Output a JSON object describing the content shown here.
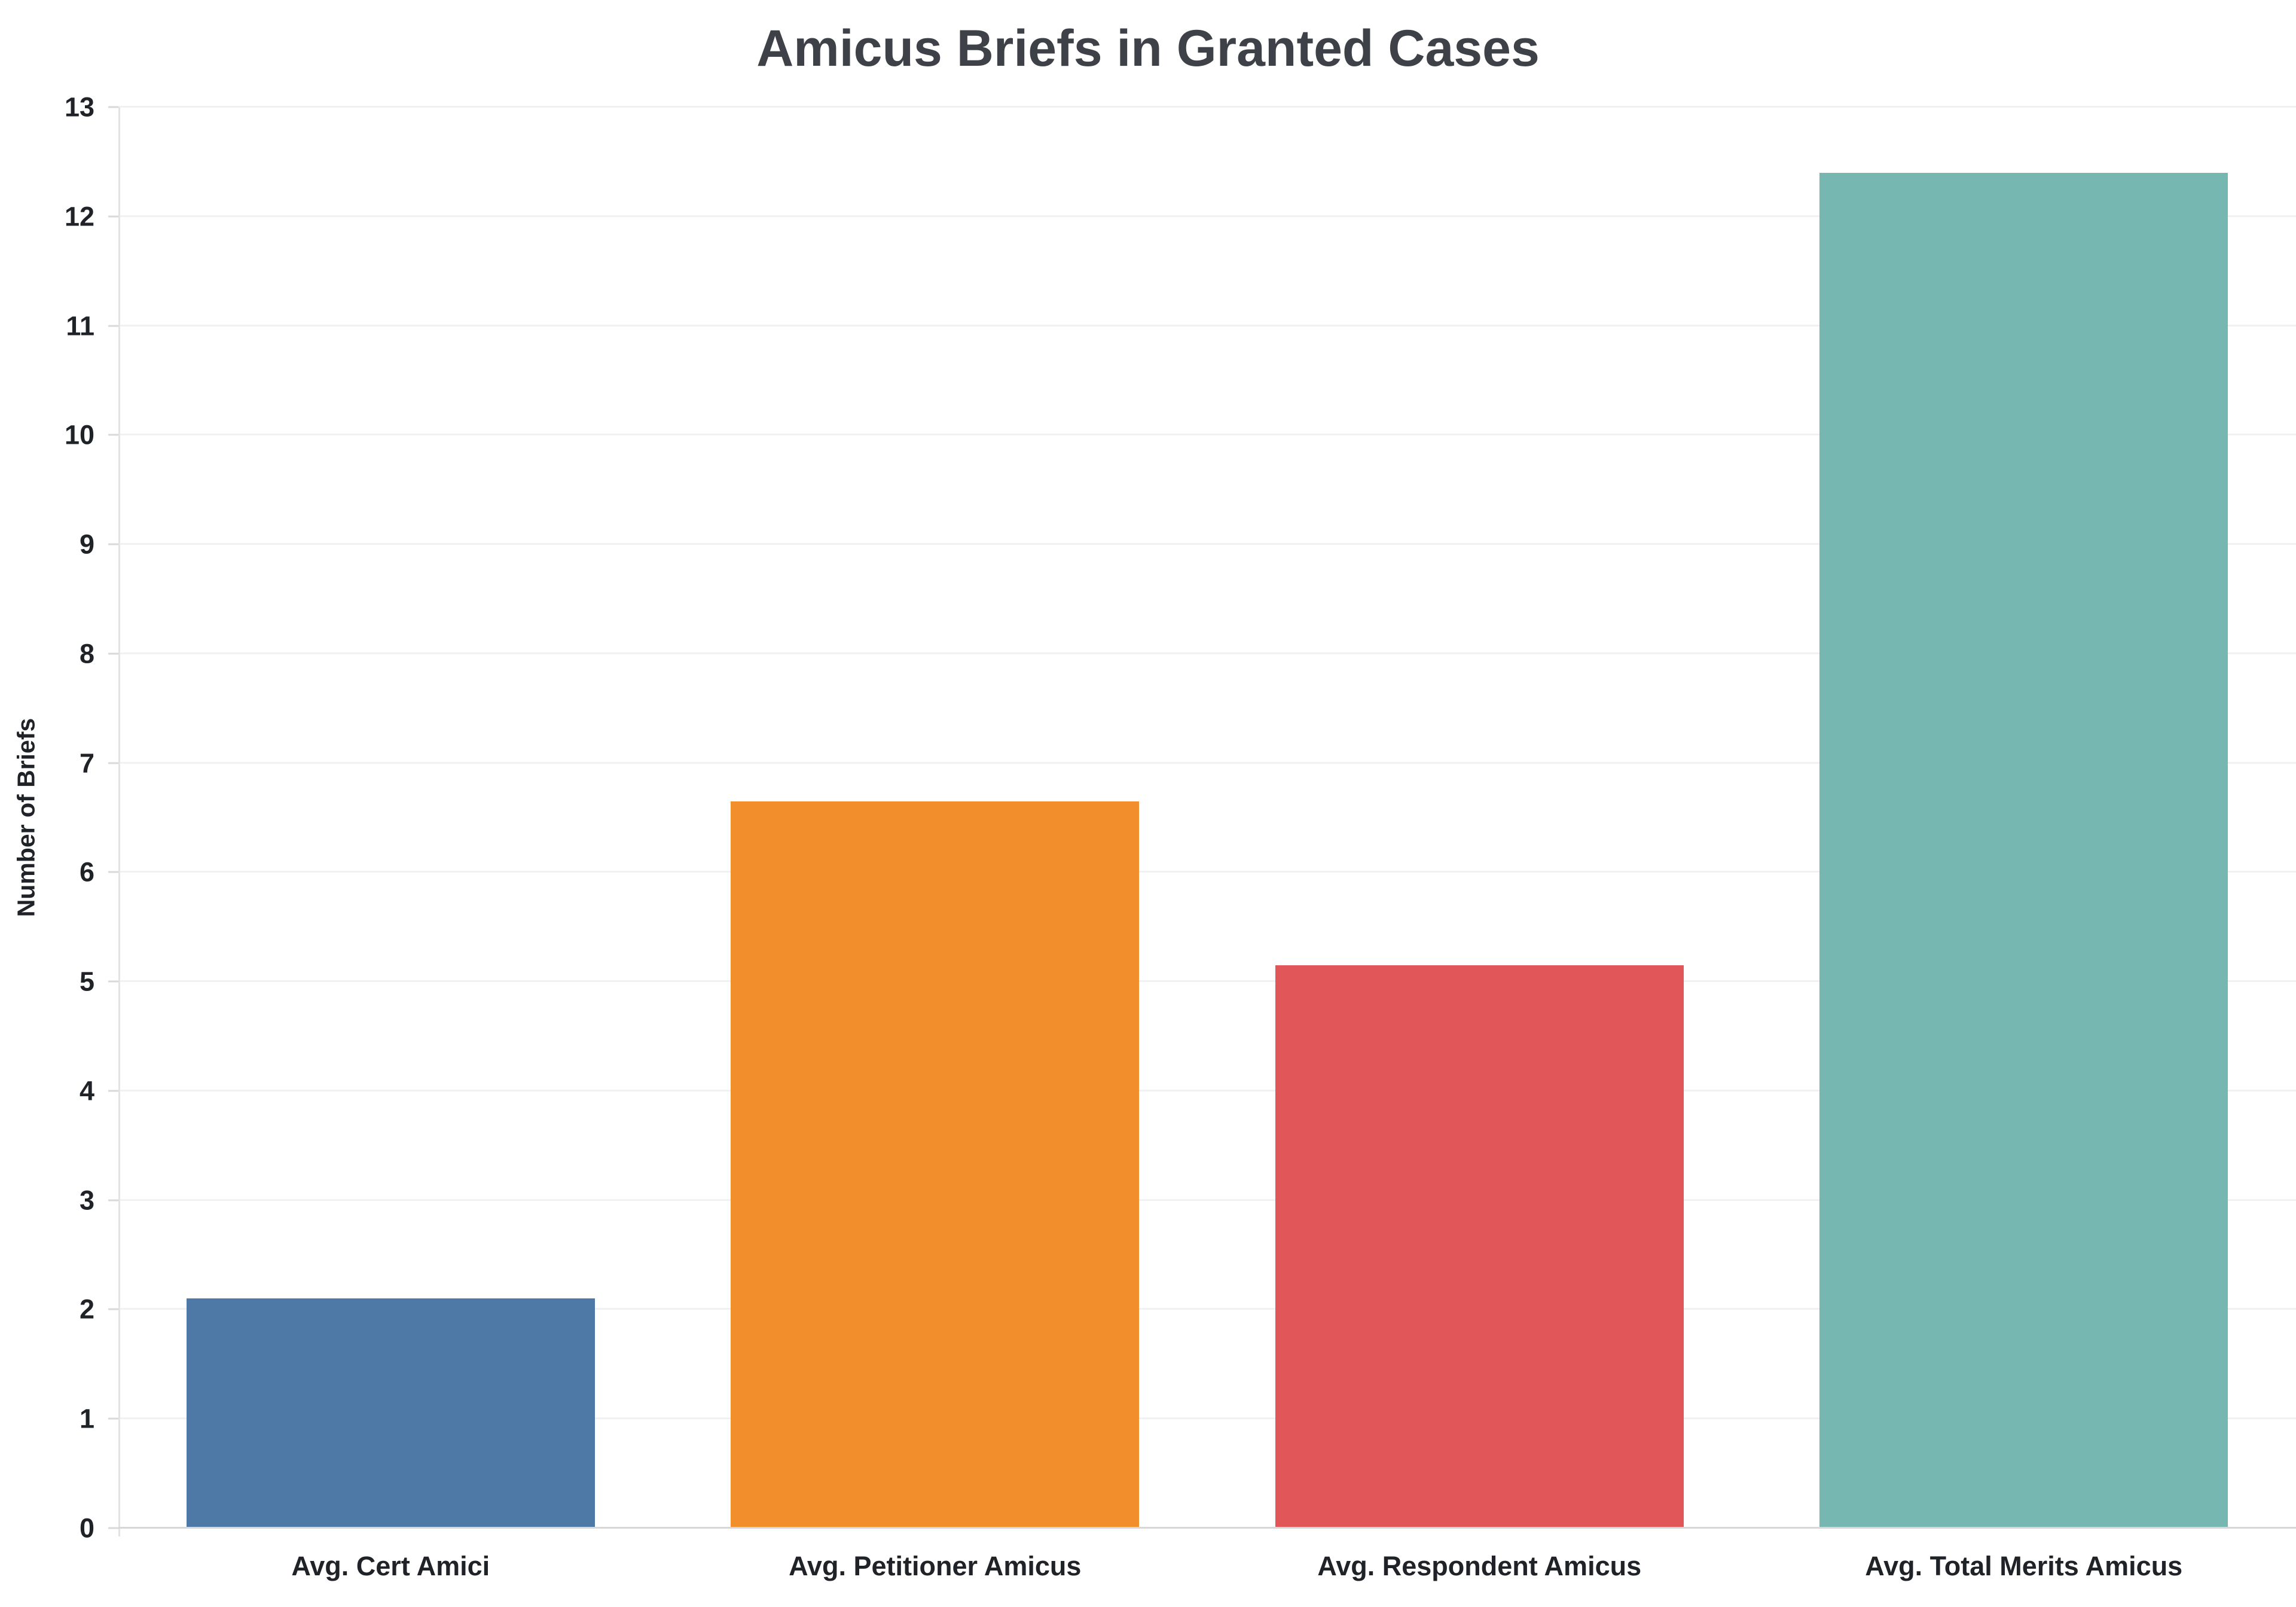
{
  "page": {
    "background": "#ffffff"
  },
  "chart_data": {
    "type": "bar",
    "title": "Amicus Briefs in Granted Cases",
    "subtitle": "",
    "xlabel": "",
    "ylabel": "Number of Briefs",
    "categories": [
      "Avg. Cert Amici",
      "Avg. Petitioner Amicus",
      "Avg. Respondent Amicus",
      "Avg. Total Merits Amicus"
    ],
    "values": [
      2.1,
      6.65,
      5.15,
      12.4
    ],
    "bar_colors": [
      "#4E79A7",
      "#F28E2B",
      "#E15759",
      "#76B7B2"
    ],
    "ylim": [
      0,
      13
    ],
    "ytick_step": 1,
    "yticks": [
      0,
      1,
      2,
      3,
      4,
      5,
      6,
      7,
      8,
      9,
      10,
      11,
      12,
      13
    ],
    "grid": true,
    "legend": false,
    "grid_color": "#F1F1F1",
    "axis_line_color": "#D9D9D9",
    "text_color": "#1F2227",
    "title_color": "#3E4147"
  }
}
